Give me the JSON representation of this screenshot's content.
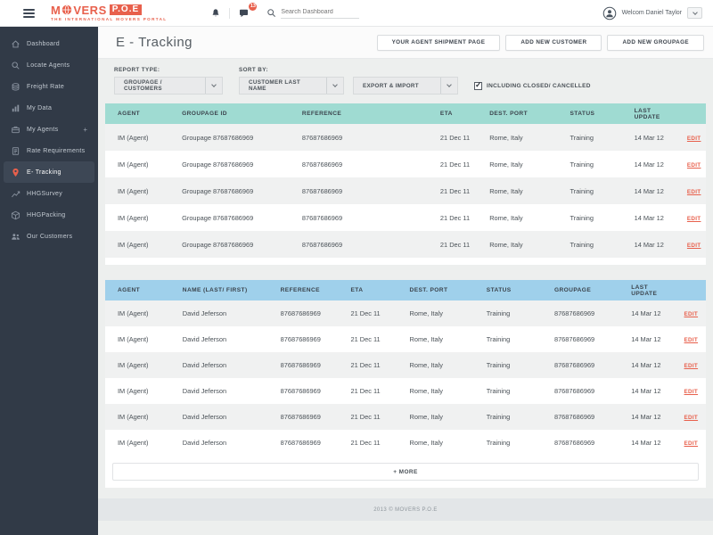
{
  "colors": {
    "accent": "#e8604c",
    "sidebar_bg": "#313a47",
    "sidebar_active_bg": "#3d4755",
    "teal_header": "#9fdbd2",
    "blue_header": "#9fd0eb",
    "row_alt": "#f0f1f1",
    "page_bg": "#edefee"
  },
  "header": {
    "brand_prefix": "M",
    "brand_rest": "VERS",
    "brand_box": "P.O.E",
    "tagline": "THE INTERNATIONAL MOVERS PORTAL",
    "notifications_badge": "13",
    "search_placeholder": "Search Dashboard",
    "user_welcome": "Welcom Daniel Taylor"
  },
  "sidebar": {
    "items": [
      {
        "label": "Dashboard",
        "icon": "home-icon",
        "active": false
      },
      {
        "label": "Locate Agents",
        "icon": "search-icon",
        "active": false
      },
      {
        "label": "Freight Rate",
        "icon": "coins-icon",
        "active": false
      },
      {
        "label": "My Data",
        "icon": "bar-chart-icon",
        "active": false
      },
      {
        "label": "My Agents",
        "icon": "briefcase-icon",
        "suffix": "+",
        "active": false
      },
      {
        "label": "Rate Requirements",
        "icon": "clipboard-icon",
        "active": false
      },
      {
        "label": "E- Tracking",
        "icon": "map-pin-icon",
        "active": true
      },
      {
        "label": "HHGSurvey",
        "icon": "line-chart-icon",
        "active": false
      },
      {
        "label": "HHGPacking",
        "icon": "package-icon",
        "active": false
      },
      {
        "label": "Our Customers",
        "icon": "people-icon",
        "active": false
      }
    ]
  },
  "page": {
    "title": "E - Tracking",
    "actions": [
      "YOUR AGENT SHIPMENT PAGE",
      "ADD NEW CUSTOMER",
      "ADD NEW GROUPAGE"
    ]
  },
  "filters": {
    "report_type_label": "REPORT TYPE:",
    "report_type_value": "GROUPAGE / CUSTOMERS",
    "sort_by_label": "SORT BY:",
    "sort_by_value": "CUSTOMER LAST NAME",
    "export_import_value": "EXPORT & IMPORT",
    "checkbox_label": "INCLUDING CLOSED/ CANCELLED",
    "checkbox_checked": true
  },
  "groupage_table": {
    "headers": [
      "AGENT",
      "GROUPAGE ID",
      "REFERENCE",
      "ETA",
      "DEST. PORT",
      "STATUS",
      "LAST UPDATE"
    ],
    "edit_label": "EDIT",
    "rows": [
      {
        "agent": "IM (Agent)",
        "groupage_id": "Groupage 87687686969",
        "reference": "87687686969",
        "eta": "21 Dec 11",
        "dest_port": "Rome, Italy",
        "status": "Training",
        "last_update": "14 Mar 12"
      },
      {
        "agent": "IM (Agent)",
        "groupage_id": "Groupage 87687686969",
        "reference": "87687686969",
        "eta": "21 Dec 11",
        "dest_port": "Rome, Italy",
        "status": "Training",
        "last_update": "14 Mar 12"
      },
      {
        "agent": "IM (Agent)",
        "groupage_id": "Groupage 87687686969",
        "reference": "87687686969",
        "eta": "21 Dec 11",
        "dest_port": "Rome, Italy",
        "status": "Training",
        "last_update": "14 Mar 12"
      },
      {
        "agent": "IM (Agent)",
        "groupage_id": "Groupage 87687686969",
        "reference": "87687686969",
        "eta": "21 Dec 11",
        "dest_port": "Rome, Italy",
        "status": "Training",
        "last_update": "14 Mar 12"
      },
      {
        "agent": "IM (Agent)",
        "groupage_id": "Groupage 87687686969",
        "reference": "87687686969",
        "eta": "21 Dec 11",
        "dest_port": "Rome, Italy",
        "status": "Training",
        "last_update": "14 Mar 12"
      }
    ]
  },
  "customers_table": {
    "headers": [
      "AGENT",
      "NAME (LAST/ FIRST)",
      "REFERENCE",
      "ETA",
      "DEST. PORT",
      "STATUS",
      "GROUPAGE",
      "LAST UPDATE"
    ],
    "edit_label": "EDIT",
    "more_label": "+ MORE",
    "rows": [
      {
        "agent": "IM (Agent)",
        "name": "David Jeferson",
        "reference": "87687686969",
        "eta": "21 Dec 11",
        "dest_port": "Rome, Italy",
        "status": "Training",
        "groupage": "87687686969",
        "last_update": "14 Mar 12"
      },
      {
        "agent": "IM (Agent)",
        "name": "David Jeferson",
        "reference": "87687686969",
        "eta": "21 Dec 11",
        "dest_port": "Rome, Italy",
        "status": "Training",
        "groupage": "87687686969",
        "last_update": "14 Mar 12"
      },
      {
        "agent": "IM (Agent)",
        "name": "David Jeferson",
        "reference": "87687686969",
        "eta": "21 Dec 11",
        "dest_port": "Rome, Italy",
        "status": "Training",
        "groupage": "87687686969",
        "last_update": "14 Mar 12"
      },
      {
        "agent": "IM (Agent)",
        "name": "David Jeferson",
        "reference": "87687686969",
        "eta": "21 Dec 11",
        "dest_port": "Rome, Italy",
        "status": "Training",
        "groupage": "87687686969",
        "last_update": "14 Mar 12"
      },
      {
        "agent": "IM (Agent)",
        "name": "David Jeferson",
        "reference": "87687686969",
        "eta": "21 Dec 11",
        "dest_port": "Rome, Italy",
        "status": "Training",
        "groupage": "87687686969",
        "last_update": "14 Mar 12"
      },
      {
        "agent": "IM (Agent)",
        "name": "David Jeferson",
        "reference": "87687686969",
        "eta": "21 Dec 11",
        "dest_port": "Rome, Italy",
        "status": "Training",
        "groupage": "87687686969",
        "last_update": "14 Mar 12"
      }
    ]
  },
  "footer": {
    "text": "2013 © MOVERS P.O.E"
  }
}
